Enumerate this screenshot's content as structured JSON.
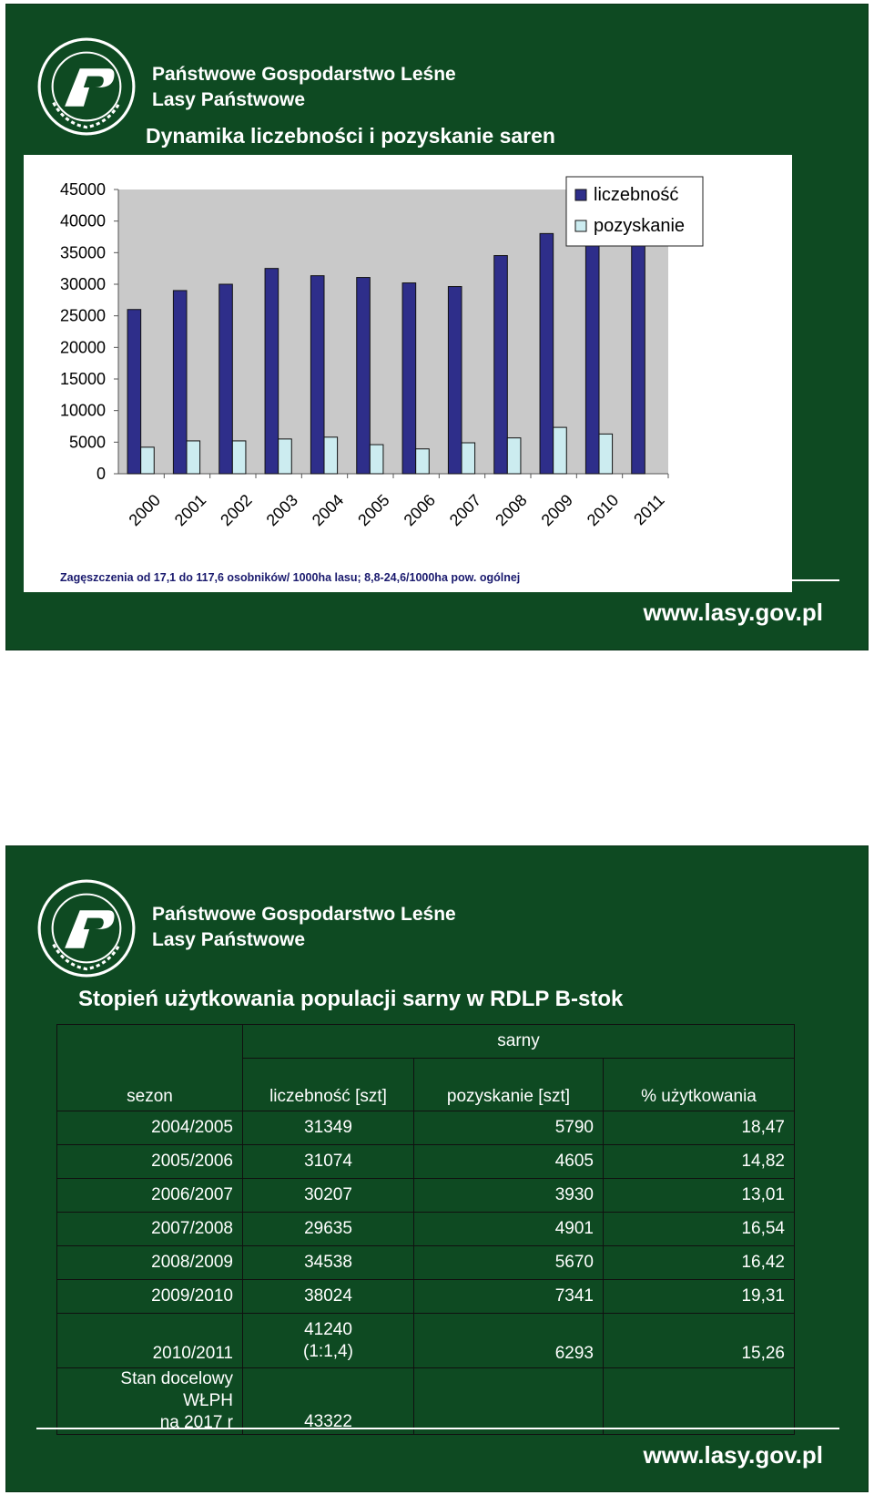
{
  "org": {
    "line1": "Państwowe Gospodarstwo Leśne",
    "line2": "Lasy Państwowe",
    "logo_text": "LASY PAŃSTWOWE"
  },
  "slide1": {
    "title": "Dynamika liczebności i pozyskanie saren",
    "footnote": "Zagęszczenia od 17,1 do 117,6 osobników/ 1000ha lasu; 8,8-24,6/1000ha pow. ogólnej",
    "url": "www.lasy.gov.pl"
  },
  "chart_data": {
    "type": "bar",
    "categories": [
      "2000",
      "2001",
      "2002",
      "2003",
      "2004",
      "2005",
      "2006",
      "2007",
      "2008",
      "2009",
      "2010",
      "2011"
    ],
    "series": [
      {
        "name": "liczebność",
        "color": "#2e2e8a",
        "values": [
          26000,
          29000,
          30000,
          32500,
          31349,
          31074,
          30207,
          29635,
          34538,
          38024,
          41240,
          43000
        ]
      },
      {
        "name": "pozyskanie",
        "color": "#ccecf0",
        "values": [
          4200,
          5200,
          5200,
          5500,
          5790,
          4605,
          3930,
          4901,
          5670,
          7341,
          6293,
          null
        ]
      }
    ],
    "yticks": [
      0,
      5000,
      10000,
      15000,
      20000,
      25000,
      30000,
      35000,
      40000,
      45000
    ],
    "ylim": [
      0,
      45000
    ],
    "grid": false,
    "legend_position": "top-right",
    "plot_background": "#c9c9c9"
  },
  "slide2": {
    "title": "Stopień użytkowania populacji sarny w RDLP B-stok",
    "group_header": "sarny",
    "headers": [
      "sezon",
      "liczebność [szt]",
      "pozyskanie [szt]",
      "% użytkowania"
    ],
    "rows": [
      [
        "2004/2005",
        "31349",
        "5790",
        "18,47"
      ],
      [
        "2005/2006",
        "31074",
        "4605",
        "14,82"
      ],
      [
        "2006/2007",
        "30207",
        "3930",
        "13,01"
      ],
      [
        "2007/2008",
        "29635",
        "4901",
        "16,54"
      ],
      [
        "2008/2009",
        "34538",
        "5670",
        "16,42"
      ],
      [
        "2009/2010",
        "38024",
        "7341",
        "19,31"
      ]
    ],
    "row_2010": {
      "sezon": "2010/2011",
      "liczebnosc": "41240",
      "ratio": "(1:1,4)",
      "pozyskanie": "6293",
      "uzytkowanie": "15,26"
    },
    "row_target": {
      "line1": "Stan docelowy WŁPH",
      "line2": "na 2017 r",
      "liczebnosc": "43322"
    },
    "url": "www.lasy.gov.pl"
  }
}
